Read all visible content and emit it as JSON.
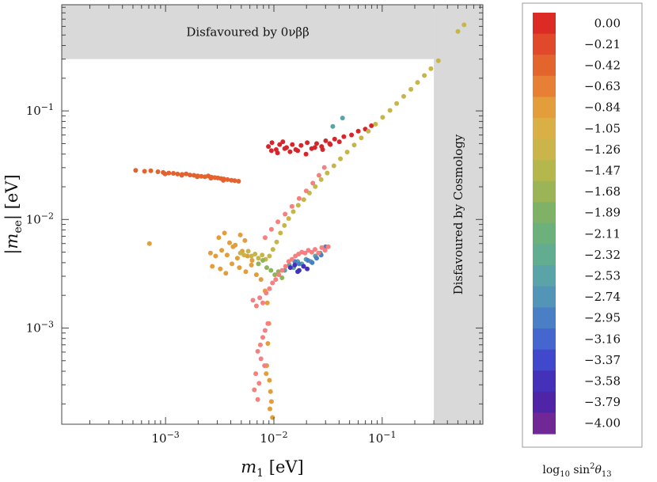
{
  "chart_data": {
    "type": "scatter",
    "x_scale": "log",
    "y_scale": "log",
    "xlim": [
      0.00011,
      0.85
    ],
    "ylim": [
      0.00013,
      0.95
    ],
    "x_ticks": [
      {
        "value": 0.001,
        "base": "10",
        "exp": "−3"
      },
      {
        "value": 0.01,
        "base": "10",
        "exp": "−2"
      },
      {
        "value": 0.1,
        "base": "10",
        "exp": "−1"
      }
    ],
    "y_ticks": [
      {
        "value": 0.001,
        "base": "10",
        "exp": "−3"
      },
      {
        "value": 0.01,
        "base": "10",
        "exp": "−2"
      },
      {
        "value": 0.1,
        "base": "10",
        "exp": "−1"
      }
    ],
    "xlabel": {
      "var": "m",
      "sub": "1",
      "unit": " [eV]"
    },
    "ylabel": {
      "pre": "|",
      "var": "m",
      "sub": "ee",
      "post": "| [eV]"
    },
    "regions": [
      {
        "label": "Disfavoured by 0νββ",
        "y_min": 0.3,
        "y_max": 0.95,
        "x_min": 0.00011,
        "x_max": 0.3
      },
      {
        "label": "Disfavoured by Cosmology",
        "x_min": 0.3,
        "x_max": 0.85,
        "y_min": 0.00013,
        "y_max": 0.95
      }
    ],
    "colorbar": {
      "title": {
        "pre": "log",
        "sub": "10",
        "mid": " sin",
        "sup": "2",
        "var": "θ",
        "sub2": "13"
      },
      "labels": [
        "0.00",
        "−0.21",
        "−0.42",
        "−0.63",
        "−0.84",
        "−1.05",
        "−1.26",
        "−1.47",
        "−1.68",
        "−1.89",
        "−2.11",
        "−2.32",
        "−2.53",
        "−2.74",
        "−2.95",
        "−3.16",
        "−3.37",
        "−3.58",
        "−3.79",
        "−4.00"
      ],
      "colors": [
        "#dc2a25",
        "#e04a2a",
        "#e3652e",
        "#e77f34",
        "#e39d3a",
        "#d9b046",
        "#cbb54a",
        "#b5b64c",
        "#9ab456",
        "#7fb266",
        "#6cb07b",
        "#62ac92",
        "#5aa3a6",
        "#5295b7",
        "#4a7fc6",
        "#4566cf",
        "#4248cc",
        "#4332b9",
        "#4f24a6",
        "#6f2896"
      ]
    },
    "clusters": [
      {
        "name": "",
        "color": "#d7262b",
        "x": [
          0.0089,
          0.0096,
          0.0105,
          0.0113,
          0.0121,
          0.0131,
          0.0148,
          0.0159,
          0.0178,
          0.0203,
          0.0223,
          0.0248,
          0.0276,
          0.0301,
          0.0332,
          0.0364,
          0.0402,
          0.0443,
          0.0521,
          0.0601,
          0.0698,
          0.0795,
          0.0095,
          0.0108,
          0.0126,
          0.0141,
          0.0166,
          0.0198,
          0.0239,
          0.0282,
          0.0327
        ],
        "y": [
          0.047,
          0.051,
          0.044,
          0.049,
          0.052,
          0.046,
          0.049,
          0.044,
          0.048,
          0.051,
          0.045,
          0.05,
          0.047,
          0.053,
          0.049,
          0.055,
          0.052,
          0.058,
          0.06,
          0.065,
          0.068,
          0.073,
          0.043,
          0.041,
          0.045,
          0.042,
          0.043,
          0.04,
          0.046,
          0.044,
          0.05
        ]
      },
      {
        "name": "",
        "color": "#e4622d",
        "x": [
          0.00053,
          0.00064,
          0.00073,
          0.00085,
          0.00095,
          0.00107,
          0.00118,
          0.00129,
          0.00142,
          0.00155,
          0.00168,
          0.00183,
          0.00198,
          0.00214,
          0.00231,
          0.00248,
          0.00266,
          0.00285,
          0.00305,
          0.00325,
          0.00345,
          0.00373,
          0.00405,
          0.00435,
          0.00472,
          0.00099,
          0.00141,
          0.00196,
          0.00262,
          0.00341
        ],
        "y": [
          0.0283,
          0.0278,
          0.0281,
          0.0275,
          0.0271,
          0.0268,
          0.0266,
          0.0262,
          0.026,
          0.0263,
          0.0257,
          0.0255,
          0.0252,
          0.025,
          0.0247,
          0.0252,
          0.0245,
          0.0243,
          0.0241,
          0.0238,
          0.0236,
          0.0233,
          0.023,
          0.0228,
          0.0225,
          0.0263,
          0.0255,
          0.0247,
          0.024,
          0.0229
        ]
      },
      {
        "name": "",
        "color": "#e39d3a",
        "x": [
          0.0026,
          0.0029,
          0.0033,
          0.0037,
          0.0042,
          0.0046,
          0.0051,
          0.0057,
          0.0063,
          0.0031,
          0.0035,
          0.0039,
          0.0044,
          0.0049,
          0.0054,
          0.0027,
          0.0032,
          0.0036,
          0.0041,
          0.0048,
          0.0055,
          0.0062,
          0.0069,
          0.0076,
          0.0083,
          0.0087,
          0.009,
          0.0088,
          0.0086,
          0.0091,
          0.0093,
          0.0095,
          0.0085,
          0.0092,
          0.0097,
          0.00071
        ],
        "y": [
          0.0049,
          0.0046,
          0.0052,
          0.0047,
          0.0056,
          0.0044,
          0.0051,
          0.0046,
          0.0042,
          0.0068,
          0.0075,
          0.0061,
          0.0058,
          0.0072,
          0.0064,
          0.0037,
          0.0035,
          0.0032,
          0.0039,
          0.0036,
          0.0033,
          0.0038,
          0.0031,
          0.0028,
          0.0022,
          0.0017,
          0.0011,
          0.00072,
          0.00045,
          0.00033,
          0.00026,
          0.00021,
          0.00038,
          0.00018,
          0.00015,
          0.006
        ]
      },
      {
        "name": "",
        "color": "#c6b648",
        "x": [
          0.0049,
          0.0053,
          0.0058,
          0.0062,
          0.0067,
          0.0072,
          0.0078,
          0.0084,
          0.0091,
          0.0098,
          0.0106,
          0.0115,
          0.0125,
          0.0137,
          0.0151,
          0.0168,
          0.0189,
          0.0213,
          0.0241,
          0.0273,
          0.0311,
          0.0358,
          0.0412,
          0.0475,
          0.0552,
          0.0641,
          0.0745,
          0.0868,
          0.101,
          0.118,
          0.136,
          0.158,
          0.184,
          0.212,
          0.245,
          0.282,
          0.33,
          0.5,
          0.57
        ],
        "y": [
          0.0049,
          0.0047,
          0.0051,
          0.0046,
          0.0048,
          0.0044,
          0.0047,
          0.0043,
          0.0046,
          0.0053,
          0.0062,
          0.0075,
          0.0088,
          0.0102,
          0.0118,
          0.0135,
          0.0152,
          0.0175,
          0.0201,
          0.0233,
          0.0268,
          0.0312,
          0.0362,
          0.0418,
          0.0485,
          0.0563,
          0.0651,
          0.0754,
          0.0872,
          0.101,
          0.117,
          0.136,
          0.158,
          0.183,
          0.212,
          0.245,
          0.29,
          0.54,
          0.62
        ]
      },
      {
        "name": "",
        "color": "#8fb35a",
        "x": [
          0.0072,
          0.0079,
          0.0086,
          0.0094,
          0.0102,
          0.011,
          0.0119
        ],
        "y": [
          0.0039,
          0.0042,
          0.0036,
          0.0034,
          0.0031,
          0.0033,
          0.0029
        ]
      },
      {
        "name": "",
        "color": "#5aa3a6",
        "x": [
          0.0126,
          0.0139,
          0.0152,
          0.0166,
          0.0181,
          0.0198,
          0.0219,
          0.0241,
          0.0268,
          0.035,
          0.043
        ],
        "y": [
          0.0034,
          0.0038,
          0.0036,
          0.0041,
          0.0039,
          0.0043,
          0.0041,
          0.0046,
          0.0049,
          0.072,
          0.086
        ]
      },
      {
        "name": "",
        "color": "#4a7fc6",
        "x": [
          0.0156,
          0.0171,
          0.0188,
          0.0206,
          0.0226,
          0.0248,
          0.0273,
          0.03
        ],
        "y": [
          0.0041,
          0.0039,
          0.0037,
          0.0042,
          0.004,
          0.0044,
          0.0047,
          0.0056
        ]
      },
      {
        "name": "",
        "color": "#4332b9",
        "x": [
          0.0142,
          0.0156,
          0.0171,
          0.0188,
          0.0203,
          0.0166
        ],
        "y": [
          0.0036,
          0.0038,
          0.0034,
          0.0037,
          0.0035,
          0.0033
        ]
      },
      {
        "name": "",
        "color": "#f67f7f",
        "x": [
          0.0064,
          0.0069,
          0.0074,
          0.0079,
          0.0085,
          0.0091,
          0.0097,
          0.0104,
          0.0111,
          0.0119,
          0.0128,
          0.0137,
          0.0147,
          0.0158,
          0.0169,
          0.0181,
          0.0194,
          0.0208,
          0.0224,
          0.024,
          0.0258,
          0.0277,
          0.0297,
          0.0318,
          0.0088,
          0.0083,
          0.0079,
          0.0075,
          0.0071,
          0.0076,
          0.0082,
          0.0068,
          0.0073,
          0.0066,
          0.0071,
          0.0083,
          0.0095,
          0.0109,
          0.0127,
          0.0147,
          0.0171,
          0.0199,
          0.0229,
          0.0261,
          0.0292
        ],
        "y": [
          0.0018,
          0.0016,
          0.0019,
          0.0017,
          0.0021,
          0.0023,
          0.0026,
          0.0028,
          0.0031,
          0.0034,
          0.0037,
          0.0041,
          0.0043,
          0.0046,
          0.0048,
          0.005,
          0.0049,
          0.0052,
          0.005,
          0.0053,
          0.0049,
          0.0055,
          0.0052,
          0.0056,
          0.0011,
          0.00095,
          0.00082,
          0.0007,
          0.00061,
          0.00052,
          0.00045,
          0.00038,
          0.00031,
          0.00027,
          0.00022,
          0.0068,
          0.0081,
          0.0095,
          0.0112,
          0.0132,
          0.0156,
          0.0183,
          0.0216,
          0.0255,
          0.0301
        ]
      }
    ]
  }
}
